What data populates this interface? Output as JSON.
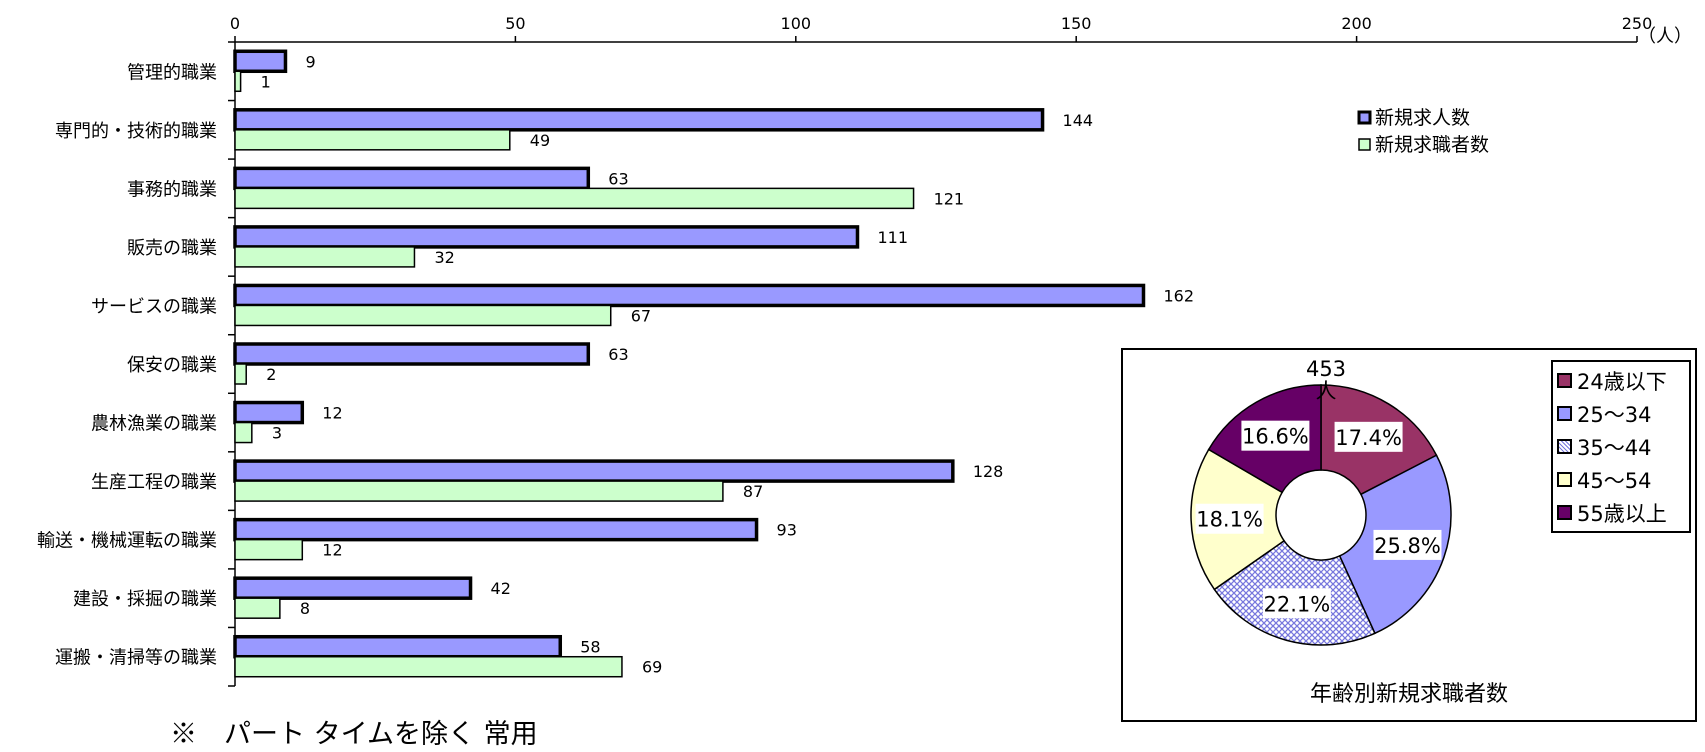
{
  "chart_data": [
    {
      "type": "bar",
      "orientation": "horizontal",
      "title": "",
      "xlabel": "",
      "ylabel": "",
      "unit_label": "（人）",
      "xlim": [
        0,
        250
      ],
      "xticks": [
        0,
        50,
        100,
        150,
        200,
        250
      ],
      "categories": [
        "管理的職業",
        "専門的・技術的職業",
        "事務的職業",
        "販売の職業",
        "サービスの職業",
        "保安の職業",
        "農林漁業の職業",
        "生産工程の職業",
        "輸送・機械運転の職業",
        "建設・採掘の職業",
        "運搬・清掃等の職業"
      ],
      "series": [
        {
          "name": "新規求人数",
          "color": "#9999ff",
          "values": [
            9,
            144,
            63,
            111,
            162,
            63,
            12,
            128,
            93,
            42,
            58
          ]
        },
        {
          "name": "新規求職者数",
          "color": "#ccffcc",
          "values": [
            1,
            49,
            121,
            32,
            67,
            2,
            3,
            87,
            12,
            8,
            69
          ]
        }
      ],
      "legend_position": "top-right",
      "grid": false
    },
    {
      "type": "pie",
      "variant": "donut",
      "title": "年齢別新規求職者数",
      "total_label": "453\n人",
      "categories": [
        "24歳以下",
        "25～34",
        "35～44",
        "45～54",
        "55歳以上"
      ],
      "values": [
        17.4,
        25.8,
        22.1,
        18.1,
        16.6
      ],
      "value_labels": [
        "17.4%",
        "25.8%",
        "22.1%",
        "18.1%",
        "16.6%"
      ],
      "colors": [
        "#993366",
        "#9999ff",
        "#9999ff",
        "#ffffcc",
        "#660066"
      ],
      "patterns": [
        "solid",
        "solid",
        "crosshatch",
        "solid",
        "solid"
      ],
      "legend_position": "right"
    }
  ],
  "footnote": "※　パート タイムを除く 常用"
}
